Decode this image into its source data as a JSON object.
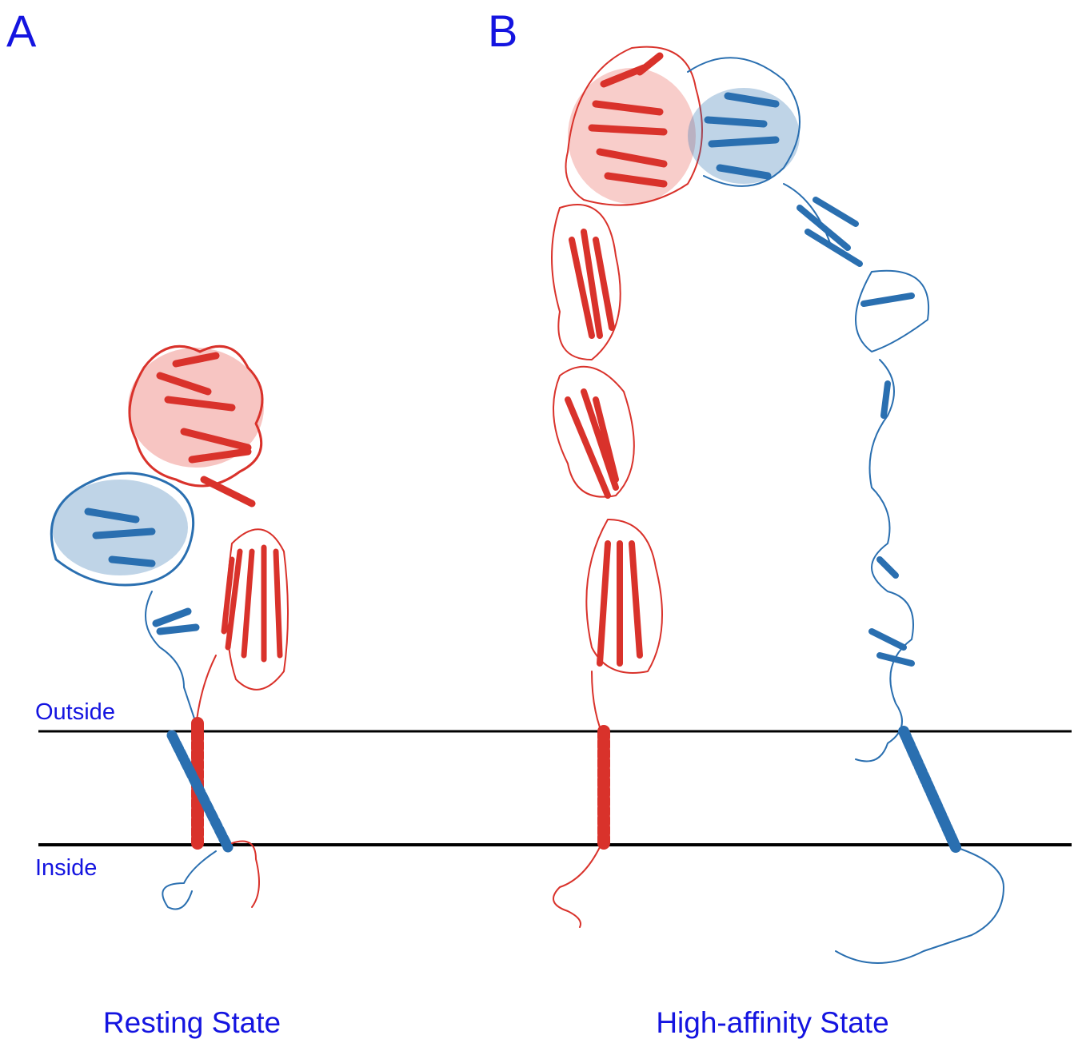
{
  "panels": [
    {
      "label": "A",
      "caption": "Resting State"
    },
    {
      "label": "B",
      "caption": "High-affinity State"
    }
  ],
  "membrane": {
    "outside": "Outside",
    "inside": "Inside"
  }
}
